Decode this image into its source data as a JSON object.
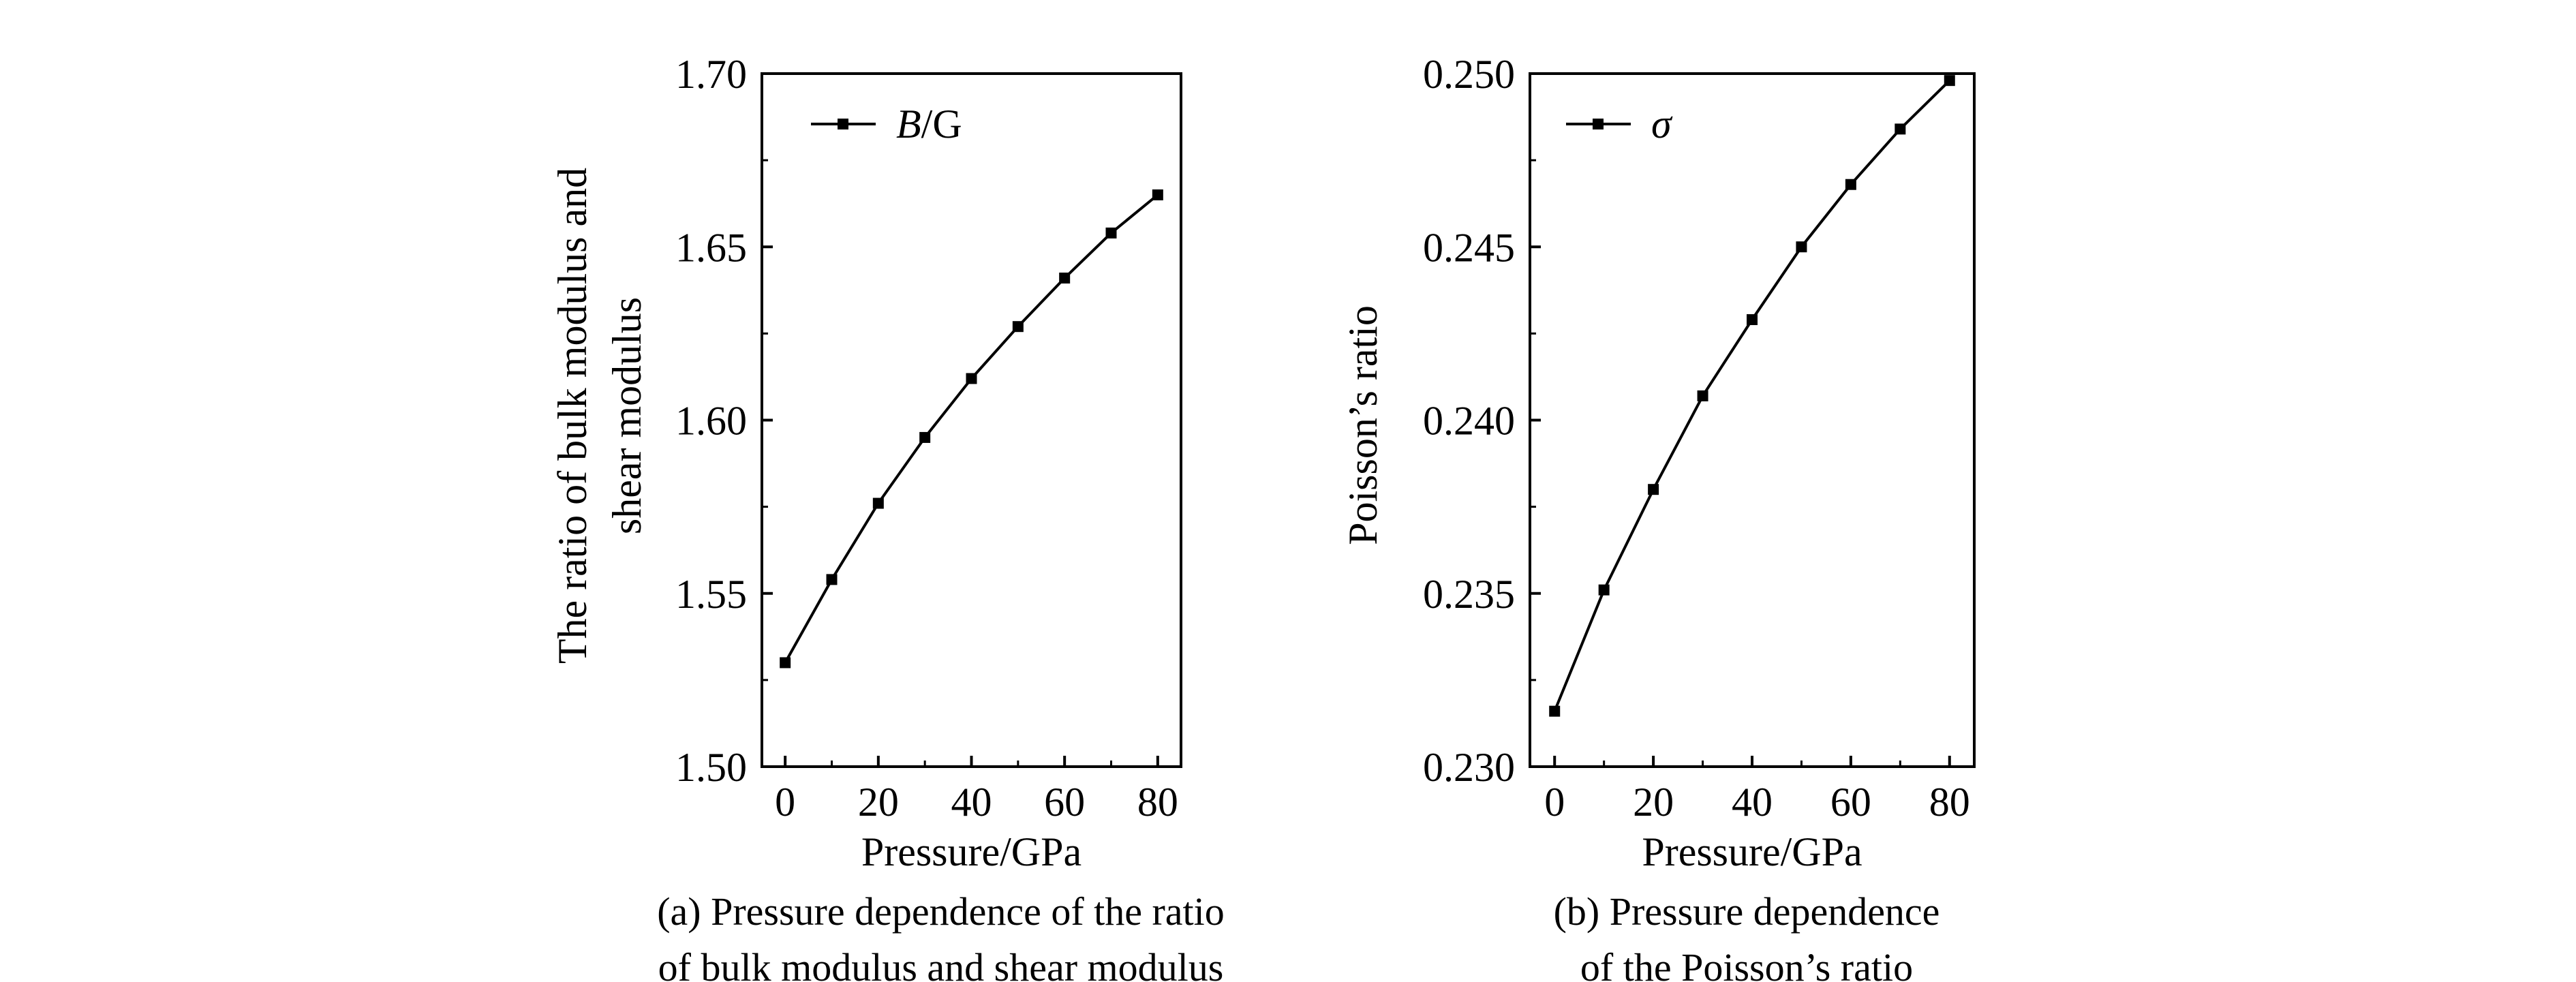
{
  "chart_data": [
    {
      "type": "line",
      "series": [
        {
          "name": "B/G",
          "x": [
            0,
            10,
            20,
            30,
            40,
            50,
            60,
            70,
            80
          ],
          "values": [
            1.53,
            1.554,
            1.576,
            1.595,
            1.612,
            1.627,
            1.641,
            1.654,
            1.665
          ]
        }
      ],
      "legend": {
        "italic": "B",
        "rest": "/G",
        "placement": "top-left"
      },
      "xlabel": "Pressure/GPa",
      "ylabel_lines": [
        "The ratio of bulk modulus and",
        "shear modulus"
      ],
      "xlim": [
        -5,
        85
      ],
      "ylim": [
        1.5,
        1.7
      ],
      "xticks": [
        0,
        20,
        40,
        60,
        80
      ],
      "xtick_labels": [
        "0",
        "20",
        "40",
        "60",
        "80"
      ],
      "yticks": [
        1.5,
        1.55,
        1.6,
        1.65,
        1.7
      ],
      "ytick_labels": [
        "1.50",
        "1.55",
        "1.60",
        "1.65",
        "1.70"
      ],
      "caption_lines": [
        "(a) Pressure dependence of the ratio",
        "of bulk modulus and shear modulus"
      ]
    },
    {
      "type": "line",
      "series": [
        {
          "name": "σ",
          "x": [
            0,
            10,
            20,
            30,
            40,
            50,
            60,
            70,
            80
          ],
          "values": [
            0.2316,
            0.2351,
            0.238,
            0.2407,
            0.2429,
            0.245,
            0.2468,
            0.2484,
            0.2498
          ]
        }
      ],
      "legend": {
        "italic": "σ",
        "rest": "",
        "placement": "top-left"
      },
      "xlabel": "Pressure/GPa",
      "ylabel_lines": [
        "Poisson’s ratio"
      ],
      "xlim": [
        -5,
        85
      ],
      "ylim": [
        0.23,
        0.25
      ],
      "xticks": [
        0,
        20,
        40,
        60,
        80
      ],
      "xtick_labels": [
        "0",
        "20",
        "40",
        "60",
        "80"
      ],
      "yticks": [
        0.23,
        0.235,
        0.24,
        0.245,
        0.25
      ],
      "ytick_labels": [
        "0.230",
        "0.235",
        "0.240",
        "0.245",
        "0.250"
      ],
      "caption_lines": [
        "(b) Pressure dependence",
        "of the Poisson’s ratio"
      ]
    }
  ],
  "colors": {
    "line": "#000000",
    "marker": "#000000",
    "axis": "#000000"
  }
}
